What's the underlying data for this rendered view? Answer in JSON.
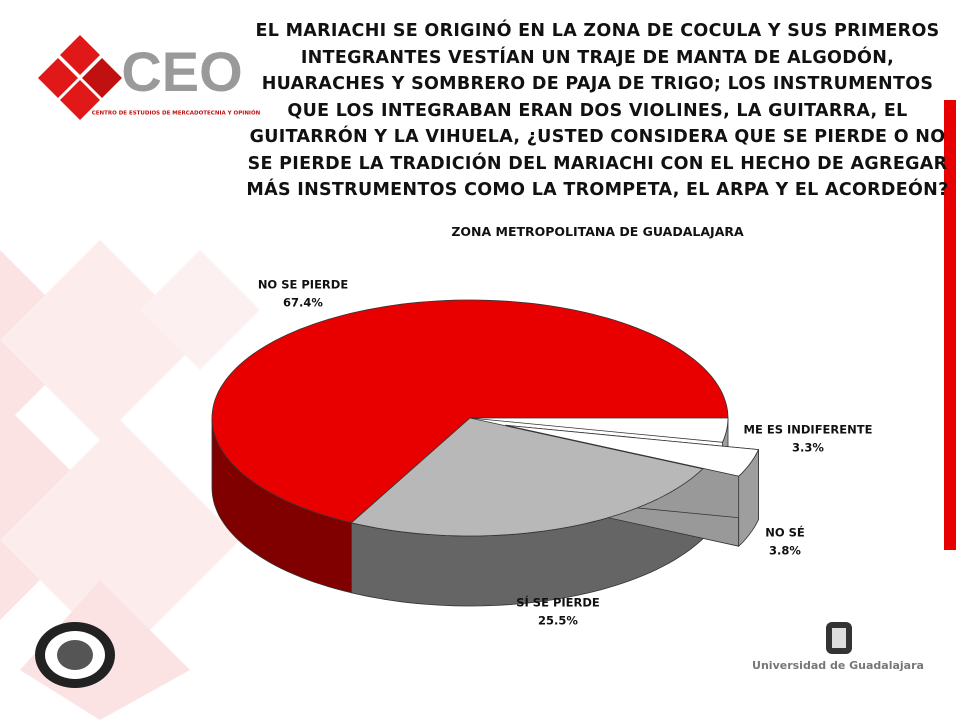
{
  "logo": {
    "name": "CEO",
    "tagline": "CENTRO DE ESTUDIOS DE MERCADOTECNIA Y OPINIÓN"
  },
  "footer": {
    "university": "Universidad de Guadalajara"
  },
  "chart_data": {
    "type": "pie",
    "title": "EL MARIACHI SE ORIGINÓ EN LA ZONA DE COCULA Y SUS PRIMEROS INTEGRANTES VESTÍAN UN TRAJE DE MANTA DE ALGODÓN, HUARACHES Y SOMBRERO DE PAJA DE TRIGO; LOS INSTRUMENTOS QUE LOS INTEGRABAN ERAN DOS VIOLINES, LA GUITARRA, EL GUITARRÓN Y LA VIHUELA, ¿USTED CONSIDERA QUE SE PIERDE O NO SE PIERDE LA TRADICIÓN DEL MARIACHI CON EL HECHO DE AGREGAR MÁS INSTRUMENTOS COMO LA TROMPETA, EL ARPA Y EL ACORDEÓN?",
    "subtitle": "ZONA METROPOLITANA DE GUADALAJARA",
    "categories": [
      "NO SE PIERDE",
      "SÍ SE PIERDE",
      "NO SÉ",
      "ME ES INDIFERENTE"
    ],
    "values": [
      67.4,
      25.5,
      3.8,
      3.3
    ],
    "value_labels": [
      "67.4%",
      "25.5%",
      "3.8%",
      "3.3%"
    ],
    "colors": [
      "#e80000",
      "#b8b8b8",
      "#ffffff",
      "#ffffff"
    ]
  }
}
